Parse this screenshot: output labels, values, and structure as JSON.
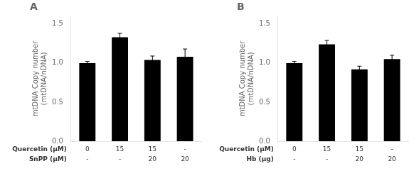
{
  "chart_data": [
    {
      "type": "bar",
      "title": "A",
      "categories": [
        [
          "0",
          "-"
        ],
        [
          "15",
          "-"
        ],
        [
          "15",
          "20"
        ],
        [
          "-",
          "20"
        ]
      ],
      "category_names": [
        "Quercetin (μM)",
        "SnPP (μM)"
      ],
      "values": [
        1.0,
        1.33,
        1.04,
        1.08
      ],
      "errors": [
        0.02,
        0.05,
        0.05,
        0.1
      ],
      "color": "#000000",
      "ylabel": "mtDNA Copy number\n(mtDNA/nDNA)",
      "ylim": [
        0,
        1.6
      ],
      "yticks": [
        {
          "value": 0.0,
          "label": "0.0"
        },
        0.5,
        {
          "value": 1.0,
          "label": "1.0"
        },
        1.5
      ],
      "grid": false
    },
    {
      "type": "bar",
      "title": "B",
      "categories": [
        [
          "0",
          "-"
        ],
        [
          "15",
          "-"
        ],
        [
          "15",
          "20"
        ],
        [
          "-",
          "20"
        ]
      ],
      "category_names": [
        "Quercetin (μM)",
        "Hb (μg)"
      ],
      "values": [
        1.0,
        1.24,
        0.92,
        1.05
      ],
      "errors": [
        0.02,
        0.05,
        0.04,
        0.05
      ],
      "color": "#000000",
      "ylabel": "mtDNA Copy number\n(mtDNA/nDNA)",
      "ylim": [
        0,
        1.6
      ],
      "yticks": [
        {
          "value": 0.0,
          "label": "0.0"
        },
        0.5,
        {
          "value": 1.0,
          "label": "1.0"
        },
        1.5
      ],
      "grid": false
    }
  ]
}
